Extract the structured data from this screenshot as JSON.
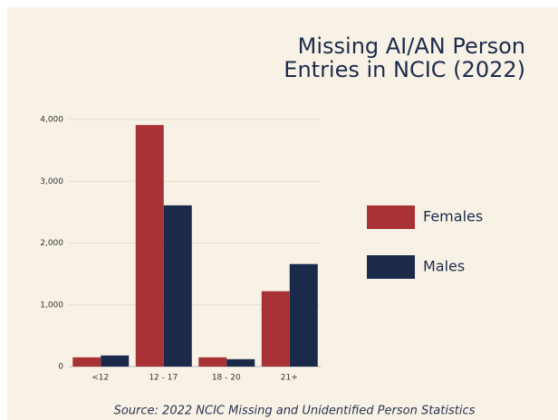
{
  "chart_data": {
    "type": "bar",
    "title": [
      "Missing AI/AN Person",
      "Entries in NCIC (2022)"
    ],
    "source": "Source: 2022 NCIC Missing and Unidentified Person Statistics",
    "categories": [
      "<12",
      "12 - 17",
      "18 - 20",
      "21+"
    ],
    "series": [
      {
        "name": "Females",
        "color": "#a83236",
        "values": [
          150,
          3910,
          150,
          1220
        ]
      },
      {
        "name": "Males",
        "color": "#1b2a4a",
        "values": [
          180,
          2610,
          120,
          1660
        ]
      }
    ],
    "ylim": [
      0,
      4000
    ],
    "yticks": [
      0,
      {
        "value": 1000,
        "label": "1,000"
      },
      {
        "value": 2000,
        "label": "2,000"
      },
      {
        "value": 3000,
        "label": "3,000"
      },
      {
        "value": 4000,
        "label": "4,000"
      }
    ],
    "grid": true,
    "legend": "right"
  }
}
